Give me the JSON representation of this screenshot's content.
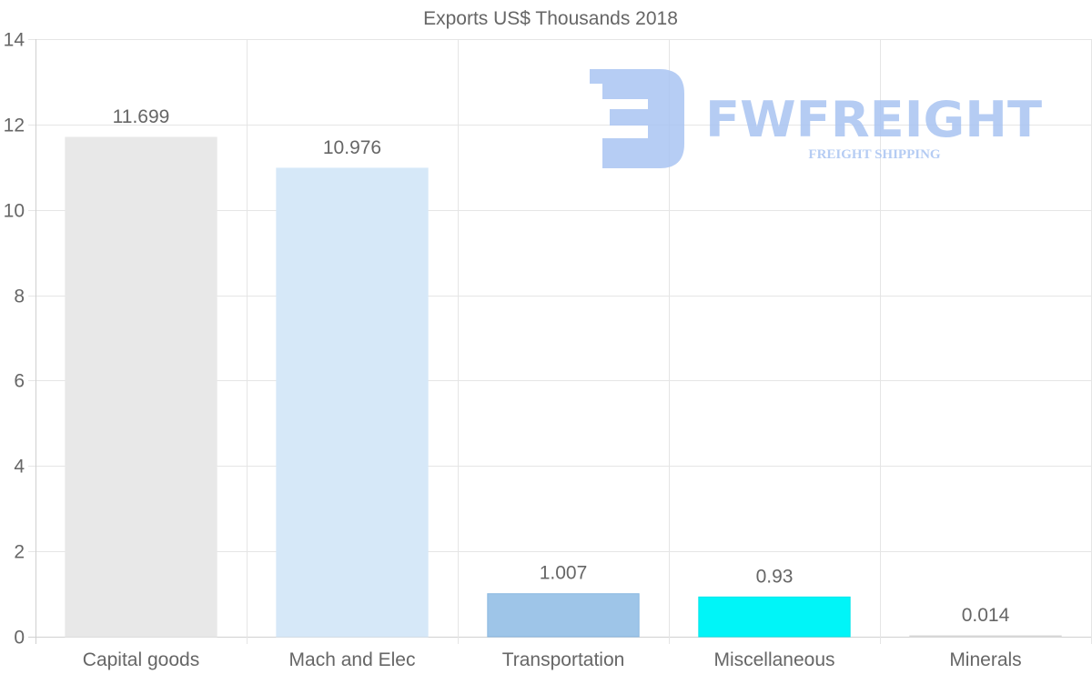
{
  "chart_data": {
    "type": "bar",
    "title": "Exports US$ Thousands 2018",
    "categories": [
      "Capital goods",
      "Mach and Elec",
      "Transportation",
      "Miscellaneous",
      "Minerals"
    ],
    "values": [
      11.699,
      10.976,
      1.007,
      0.93,
      0.014
    ],
    "value_labels": [
      "11.699",
      "10.976",
      "1.007",
      "0.93",
      "0.014"
    ],
    "colors": [
      "#e8e8e8",
      "#d6e8f8",
      "#9ec5e8",
      "#00f5f8",
      "#e8e8e8"
    ],
    "border_colors": [
      "#e8e8e8",
      "#d6e8f8",
      "#8ab8e0",
      "#00e6ea",
      "#d8d8d8"
    ],
    "ylim": [
      0,
      14
    ],
    "yticks": [
      "0",
      "2",
      "4",
      "6",
      "8",
      "10",
      "12",
      "14"
    ],
    "xlabel": "",
    "ylabel": "",
    "grid": true,
    "legend": "none"
  },
  "watermark": {
    "brand": "FWFREIGHT",
    "tagline": "FREIGHT SHIPPING",
    "color": "#a9c4f2"
  }
}
